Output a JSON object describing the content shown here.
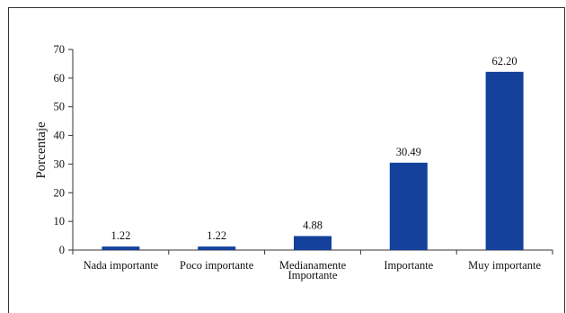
{
  "chart_data": {
    "type": "bar",
    "title": "",
    "xlabel": "",
    "ylabel": "Porcentaje",
    "ylim": [
      0,
      70
    ],
    "yticks": [
      0,
      10,
      20,
      30,
      40,
      50,
      60,
      70
    ],
    "categories": [
      [
        "Nada importante"
      ],
      [
        "Poco importante"
      ],
      [
        "Medianamente",
        "Importante"
      ],
      [
        "Importante"
      ],
      [
        "Muy importante"
      ]
    ],
    "values": [
      1.22,
      1.22,
      4.88,
      30.49,
      62.2
    ],
    "value_labels": [
      "1.22",
      "1.22",
      "4.88",
      "30.49",
      "62.20"
    ],
    "bar_color": "#13419b",
    "grid": false,
    "legend": "none"
  }
}
